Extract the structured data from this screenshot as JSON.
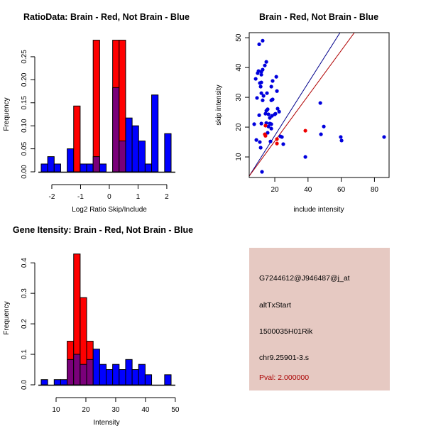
{
  "chart_data": [
    {
      "id": "ratio-hist",
      "type": "bar",
      "title": "RatioData: Brain - Red, Not Brain - Blue",
      "xlabel": "Log2 Ratio Skip/Include",
      "ylabel": "Frequency",
      "xlim": [
        -2.37,
        2.15
      ],
      "ylim": [
        0,
        0.29
      ],
      "xticks": [
        -2,
        -1,
        0,
        1,
        2
      ],
      "xtick_labels": [
        "-2",
        "-1",
        "0",
        "1",
        "2"
      ],
      "yticks": [
        0.0,
        0.05,
        0.1,
        0.15,
        0.2,
        0.25
      ],
      "ytick_labels": [
        "0.00",
        "0.05",
        "0.10",
        "0.15",
        "0.20",
        "0.25"
      ],
      "bin_start": -2.37,
      "bin_width": 0.226,
      "series": [
        {
          "name": "Brain",
          "color": "#ff0000",
          "values": [
            0,
            0,
            0,
            0,
            0,
            0.143,
            0,
            0,
            0.286,
            0,
            0,
            0.286,
            0.286,
            0,
            0,
            0,
            0,
            0,
            0,
            0
          ]
        },
        {
          "name": "Not Brain",
          "color": "#0000ff",
          "values": [
            0.017,
            0.033,
            0.017,
            0,
            0.05,
            0,
            0.017,
            0.017,
            0.033,
            0.017,
            0,
            0.183,
            0.067,
            0.117,
            0.1,
            0.067,
            0.017,
            0.167,
            0,
            0.083
          ]
        }
      ],
      "overlap_color": "#7a007a"
    },
    {
      "id": "scatter",
      "type": "scatter",
      "title": "Brain - Red, Not Brain - Blue",
      "xlabel": "include intensity",
      "ylabel": "skip intensity",
      "xlim": [
        4.6,
        88.8
      ],
      "ylim": [
        3.1,
        51.7
      ],
      "xticks": [
        20,
        40,
        60,
        80
      ],
      "yticks": [
        10,
        20,
        30,
        40,
        50
      ],
      "series": [
        {
          "name": "Not Brain",
          "color": "#0000dd",
          "points": [
            [
              12.7,
              49.0
            ],
            [
              10.6,
              47.8
            ],
            [
              14.9,
              41.9
            ],
            [
              14.0,
              40.7
            ],
            [
              12.7,
              39.3
            ],
            [
              10.2,
              38.8
            ],
            [
              11.9,
              38.6
            ],
            [
              9.7,
              38.1
            ],
            [
              11.9,
              37.6
            ],
            [
              8.5,
              36.2
            ],
            [
              20.9,
              36.9
            ],
            [
              11.9,
              35.0
            ],
            [
              11.0,
              34.8
            ],
            [
              18.7,
              35.5
            ],
            [
              11.5,
              33.6
            ],
            [
              17.9,
              33.6
            ],
            [
              21.3,
              32.1
            ],
            [
              11.9,
              31.4
            ],
            [
              15.3,
              31.4
            ],
            [
              13.2,
              30.5
            ],
            [
              9.3,
              29.8
            ],
            [
              12.7,
              29.0
            ],
            [
              17.9,
              29.0
            ],
            [
              18.7,
              29.3
            ],
            [
              15.7,
              26.0
            ],
            [
              14.9,
              25.5
            ],
            [
              21.7,
              26.2
            ],
            [
              22.6,
              25.2
            ],
            [
              14.4,
              24.5
            ],
            [
              16.2,
              24.3
            ],
            [
              20.4,
              24.5
            ],
            [
              20.0,
              24.3
            ],
            [
              18.3,
              23.8
            ],
            [
              17.0,
              23.1
            ],
            [
              10.6,
              24.0
            ],
            [
              7.6,
              21.0
            ],
            [
              11.9,
              21.2
            ],
            [
              14.9,
              21.4
            ],
            [
              17.0,
              21.2
            ],
            [
              17.9,
              21.0
            ],
            [
              16.2,
              20.2
            ],
            [
              17.9,
              19.5
            ],
            [
              15.7,
              18.1
            ],
            [
              23.4,
              16.9
            ],
            [
              24.3,
              16.7
            ],
            [
              8.9,
              15.7
            ],
            [
              17.4,
              15.2
            ],
            [
              11.0,
              15.0
            ],
            [
              25.1,
              14.3
            ],
            [
              11.5,
              13.1
            ],
            [
              12.3,
              5.0
            ],
            [
              38.4,
              10.0
            ],
            [
              47.4,
              28.1
            ],
            [
              49.5,
              20.2
            ],
            [
              47.8,
              17.6
            ],
            [
              59.7,
              16.7
            ],
            [
              60.2,
              15.5
            ],
            [
              85.8,
              16.7
            ]
          ]
        },
        {
          "name": "Brain",
          "color": "#ee0000",
          "points": [
            [
              14.4,
              20.5
            ],
            [
              14.0,
              17.6
            ],
            [
              14.4,
              17.1
            ],
            [
              21.3,
              16.0
            ],
            [
              21.3,
              14.5
            ],
            [
              38.4,
              18.8
            ]
          ]
        }
      ],
      "lines": [
        {
          "name": "Not Brain fit",
          "color": "#00008b",
          "slope": 0.88,
          "intercept": -0.45
        },
        {
          "name": "Brain fit",
          "color": "#b00000",
          "slope": 0.76,
          "intercept": 0.1
        }
      ]
    },
    {
      "id": "intensity-hist",
      "type": "bar",
      "title": "Gene Itensity: Brain - Red, Not Brain - Blue",
      "xlabel": "Intensity",
      "ylabel": "Frequency",
      "xlim": [
        5.0,
        48.6
      ],
      "ylim": [
        0,
        0.44
      ],
      "xticks": [
        10,
        20,
        30,
        40,
        50
      ],
      "xtick_labels": [
        "10",
        "20",
        "30",
        "40",
        "50"
      ],
      "yticks": [
        0.0,
        0.1,
        0.2,
        0.3,
        0.4
      ],
      "ytick_labels": [
        "0.0",
        "0.1",
        "0.2",
        "0.3",
        "0.4"
      ],
      "bin_start": 5.0,
      "bin_width": 2.18,
      "series": [
        {
          "name": "Brain",
          "color": "#ff0000",
          "values": [
            0,
            0,
            0,
            0,
            0.143,
            0.429,
            0.286,
            0.143,
            0,
            0,
            0,
            0,
            0,
            0,
            0,
            0,
            0,
            0,
            0,
            0
          ]
        },
        {
          "name": "Not Brain",
          "color": "#0000ff",
          "values": [
            0.017,
            0,
            0.017,
            0.017,
            0.083,
            0.1,
            0.067,
            0.083,
            0.117,
            0.067,
            0.05,
            0.067,
            0.05,
            0.083,
            0.05,
            0.067,
            0.033,
            0,
            0,
            0.033
          ]
        }
      ],
      "overlap_color": "#7a007a"
    }
  ],
  "info_panel": {
    "probe_id": "G7244612@J946487@j_at",
    "event_type": "altTxStart",
    "gene": "1500035H01Rik",
    "locus": "chr9.25901-3.s",
    "pval": "Pval: 2.000000",
    "background": "#e6c9c2",
    "pval_color": "#aa0000"
  }
}
